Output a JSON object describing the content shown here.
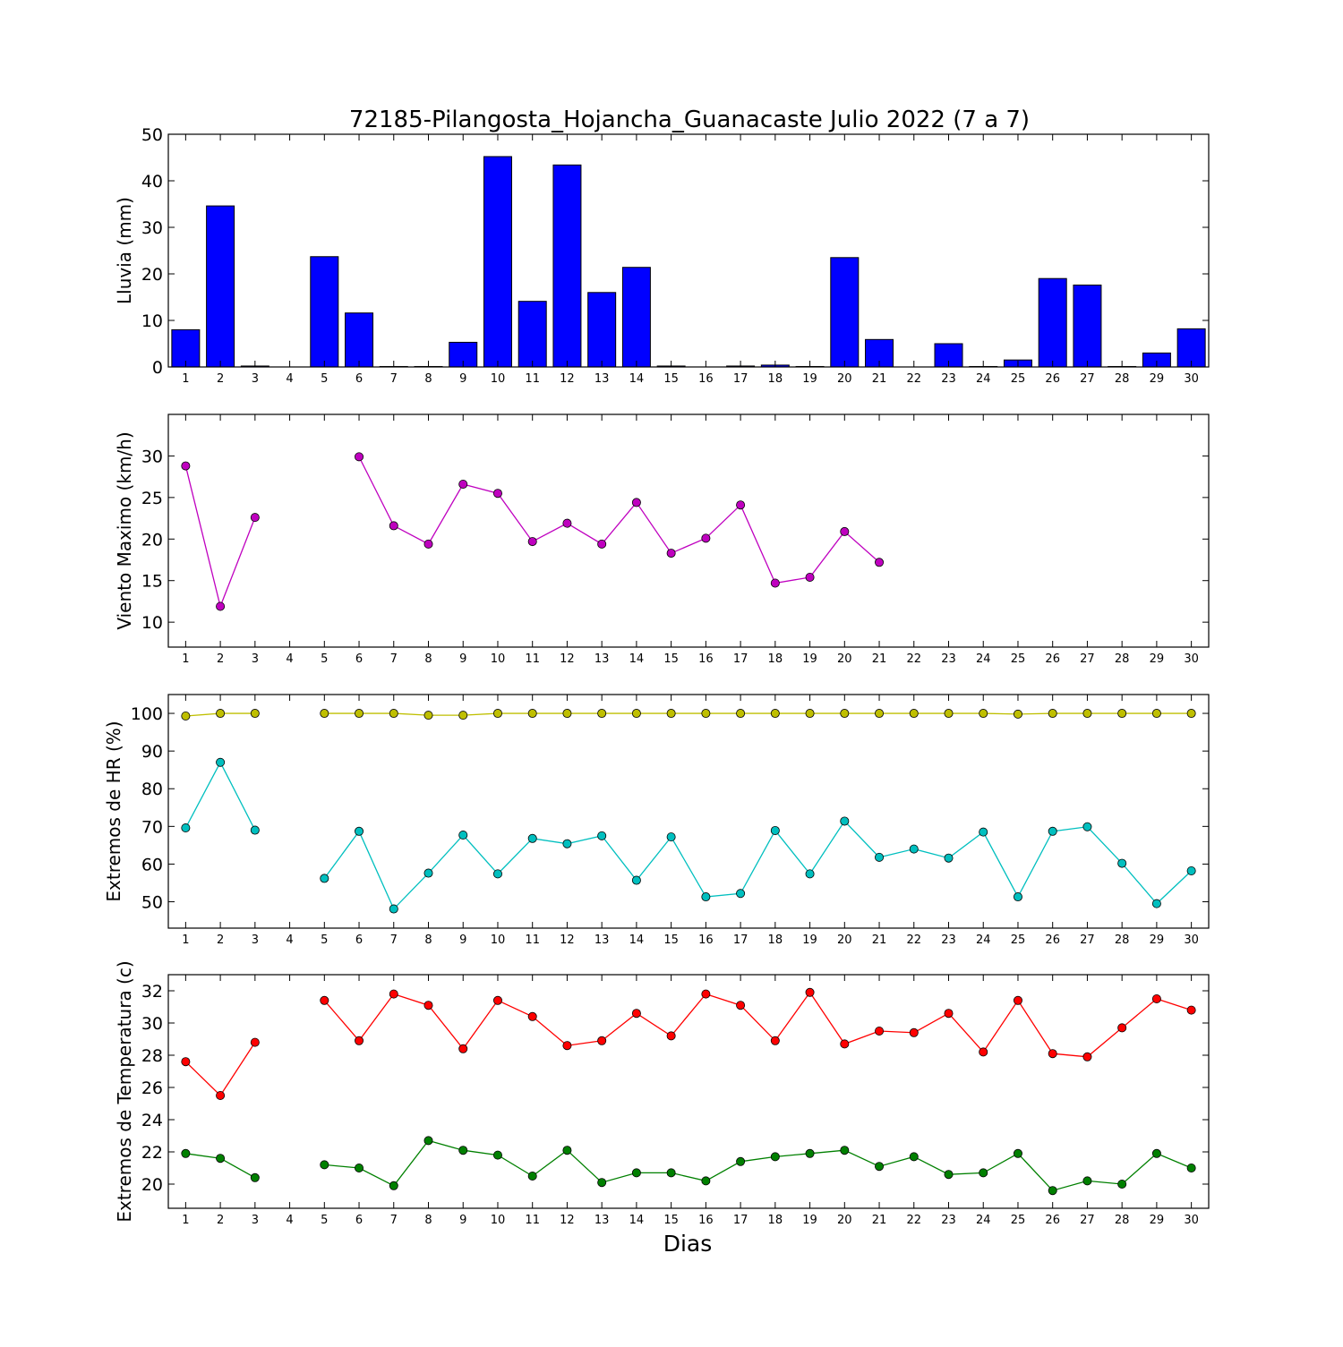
{
  "figure": {
    "title": "72185-Pilangosta_Hojancha_Guanacaste Julio 2022  (7 a 7)",
    "xlabel": "Dias"
  },
  "chart_data": [
    {
      "type": "bar",
      "ylabel": "Lluvia (mm)",
      "ylim": [
        0,
        50
      ],
      "yticks": [
        0,
        10,
        20,
        30,
        40,
        50
      ],
      "xlim": [
        0.5,
        30.5
      ],
      "categories": [
        1,
        2,
        3,
        4,
        5,
        6,
        7,
        8,
        9,
        10,
        11,
        12,
        13,
        14,
        15,
        16,
        17,
        18,
        19,
        20,
        21,
        22,
        23,
        24,
        25,
        26,
        27,
        28,
        29,
        30
      ],
      "series": [
        {
          "color": "#0000ff",
          "values": [
            8.0,
            34.6,
            0.2,
            0,
            23.7,
            11.6,
            0.1,
            0.1,
            5.3,
            45.2,
            14.1,
            43.4,
            16.0,
            21.4,
            0.2,
            0,
            0.2,
            0.4,
            0.1,
            23.5,
            5.9,
            0,
            5.0,
            0.1,
            1.5,
            19.0,
            17.6,
            0.1,
            3.0,
            8.2
          ]
        }
      ]
    },
    {
      "type": "line",
      "ylabel": "Viento Maximo (km/h)",
      "ylim": [
        7,
        35
      ],
      "yticks": [
        10,
        15,
        20,
        25,
        30
      ],
      "xlim": [
        0.5,
        30.5
      ],
      "x": [
        1,
        2,
        3,
        4,
        5,
        6,
        7,
        8,
        9,
        10,
        11,
        12,
        13,
        14,
        15,
        16,
        17,
        18,
        19,
        20,
        21,
        22,
        23,
        24,
        25,
        26,
        27,
        28,
        29,
        30
      ],
      "series": [
        {
          "color": "#bf00bf",
          "values": [
            28.8,
            11.9,
            22.6,
            null,
            null,
            29.9,
            21.6,
            19.4,
            26.6,
            25.5,
            19.7,
            21.9,
            19.4,
            24.4,
            18.3,
            20.1,
            24.1,
            14.7,
            15.4,
            20.9,
            17.2,
            null,
            null,
            null,
            null,
            null,
            null,
            null,
            null,
            null
          ]
        }
      ]
    },
    {
      "type": "line",
      "ylabel": "Extremos de HR (%)",
      "ylim": [
        43,
        105
      ],
      "yticks": [
        50,
        60,
        70,
        80,
        90,
        100
      ],
      "xlim": [
        0.5,
        30.5
      ],
      "x": [
        1,
        2,
        3,
        4,
        5,
        6,
        7,
        8,
        9,
        10,
        11,
        12,
        13,
        14,
        15,
        16,
        17,
        18,
        19,
        20,
        21,
        22,
        23,
        24,
        25,
        26,
        27,
        28,
        29,
        30
      ],
      "series": [
        {
          "color": "#bfbf00",
          "values": [
            99.3,
            100,
            100,
            null,
            100,
            100,
            100,
            99.5,
            99.5,
            100,
            100,
            100,
            100,
            100,
            100,
            100,
            100,
            100,
            100,
            100,
            100,
            100,
            100,
            100,
            99.8,
            100,
            100,
            100,
            100,
            100
          ]
        },
        {
          "color": "#00bfbf",
          "values": [
            69.6,
            87.0,
            69.0,
            null,
            56.2,
            68.7,
            48.1,
            57.6,
            67.7,
            57.4,
            66.8,
            65.4,
            67.5,
            55.7,
            67.2,
            51.3,
            52.2,
            68.9,
            57.4,
            71.4,
            61.8,
            64.0,
            61.6,
            68.5,
            51.3,
            68.7,
            69.9,
            60.2,
            49.5,
            58.2
          ]
        }
      ]
    },
    {
      "type": "line",
      "ylabel": "Extremos de Temperatura (c)",
      "ylim": [
        18.5,
        33
      ],
      "yticks": [
        20,
        22,
        24,
        26,
        28,
        30,
        32
      ],
      "xlim": [
        0.5,
        30.5
      ],
      "x": [
        1,
        2,
        3,
        4,
        5,
        6,
        7,
        8,
        9,
        10,
        11,
        12,
        13,
        14,
        15,
        16,
        17,
        18,
        19,
        20,
        21,
        22,
        23,
        24,
        25,
        26,
        27,
        28,
        29,
        30
      ],
      "series": [
        {
          "color": "#ff0000",
          "values": [
            27.6,
            25.5,
            28.8,
            null,
            31.4,
            28.9,
            31.8,
            31.1,
            28.4,
            31.4,
            30.4,
            28.6,
            28.9,
            30.6,
            29.2,
            31.8,
            31.1,
            28.9,
            31.9,
            28.7,
            29.5,
            29.4,
            30.6,
            28.2,
            31.4,
            28.1,
            27.9,
            29.7,
            31.5,
            30.8
          ]
        },
        {
          "color": "#008000",
          "values": [
            21.9,
            21.6,
            20.4,
            null,
            21.2,
            21.0,
            19.9,
            22.7,
            22.1,
            21.8,
            20.5,
            22.1,
            20.1,
            20.7,
            20.7,
            20.2,
            21.4,
            21.7,
            21.9,
            22.1,
            21.1,
            21.7,
            20.6,
            20.7,
            21.9,
            19.6,
            20.2,
            20.0,
            21.9,
            21.0
          ]
        }
      ]
    }
  ]
}
